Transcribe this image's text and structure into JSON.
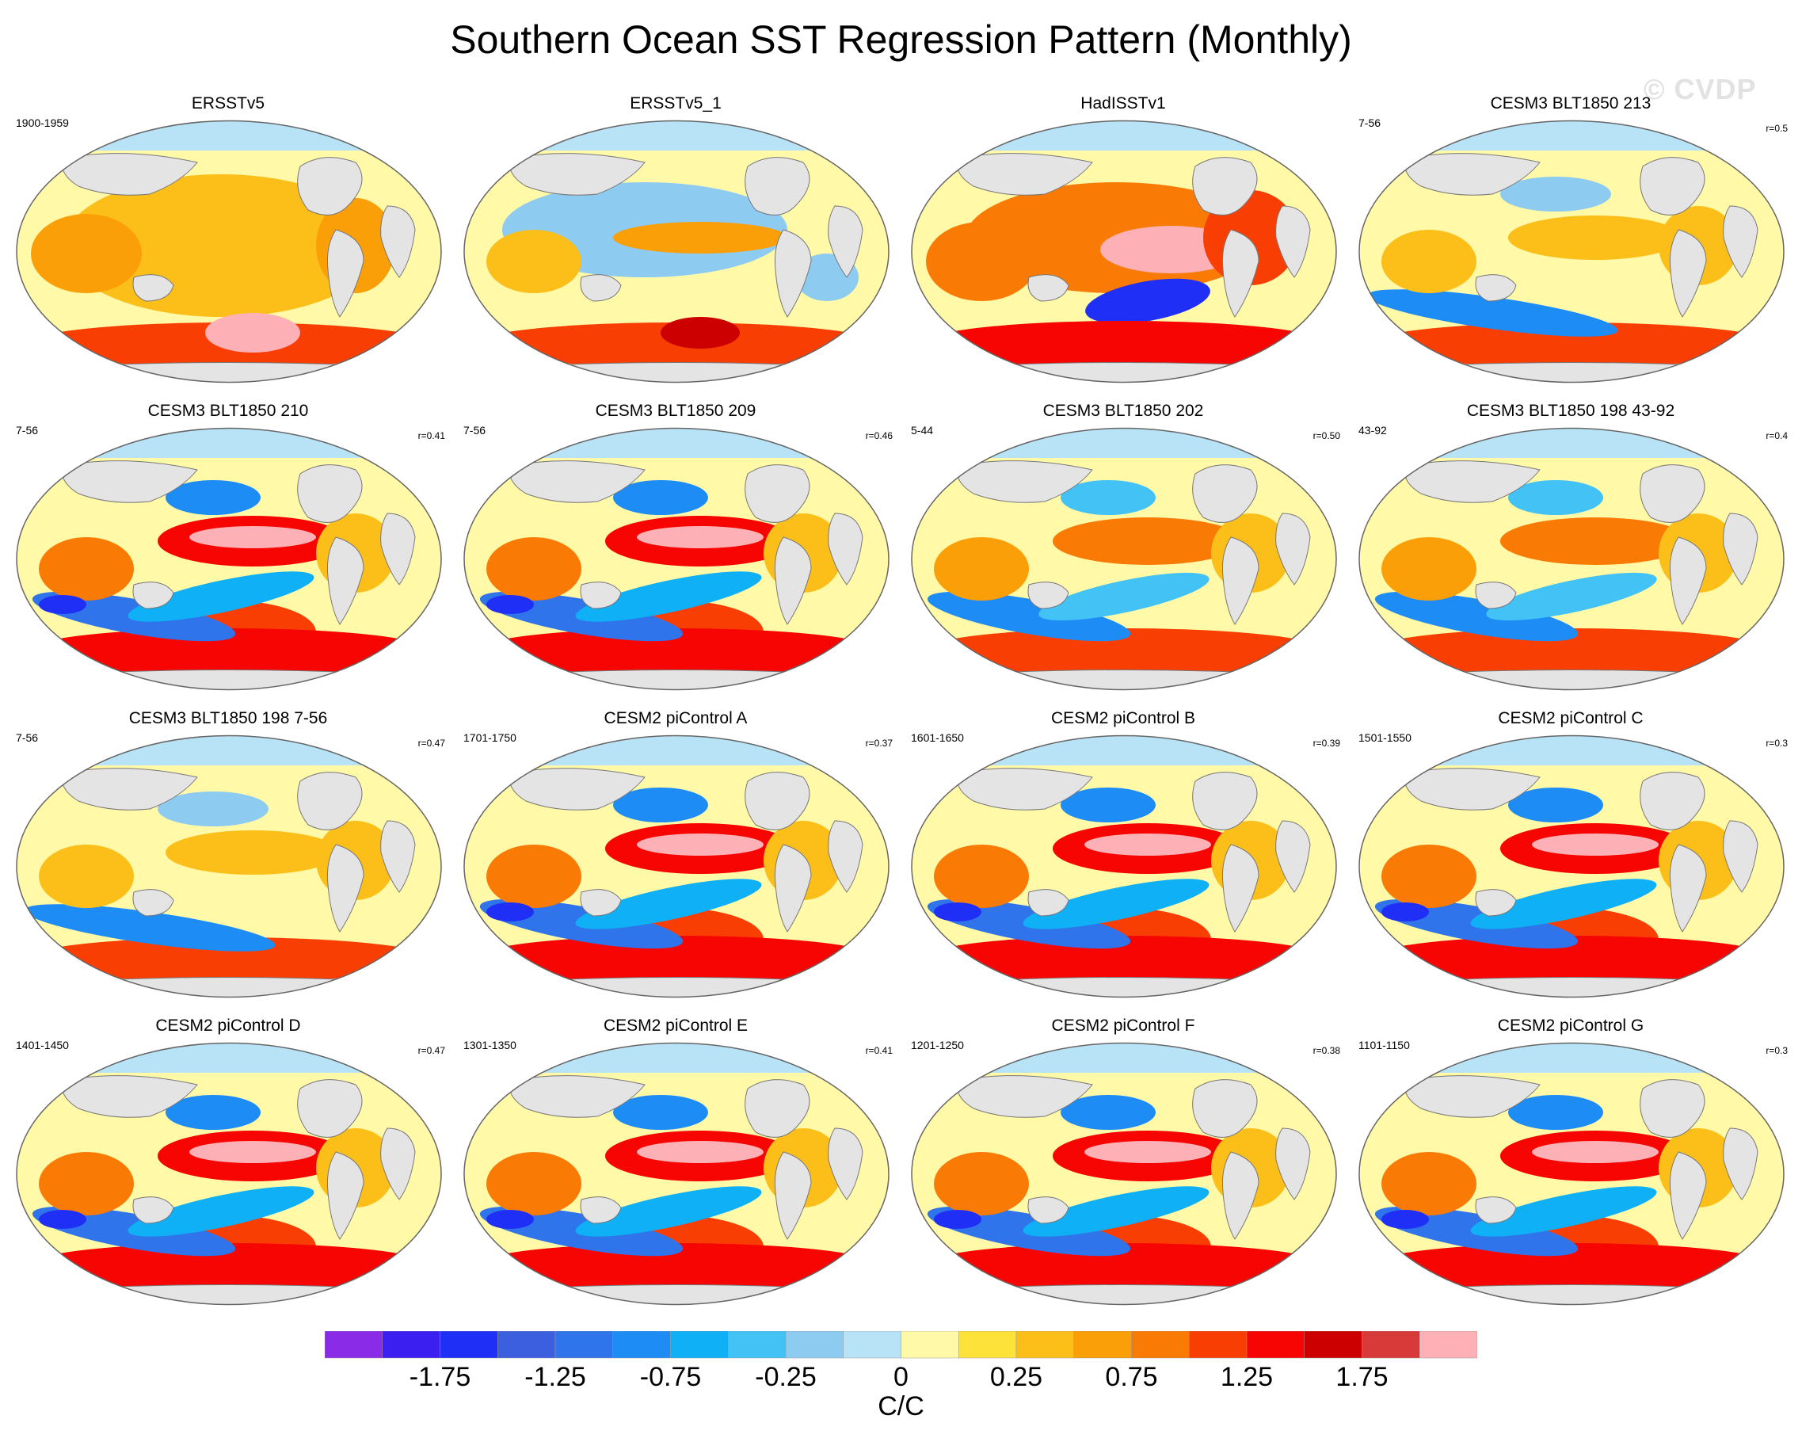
{
  "title": "Southern Ocean SST Regression Pattern (Monthly)",
  "watermark": "© CVDP",
  "colors": {
    "ocean_neutral": "#fff9a8",
    "land": "#e4e4e4",
    "coast": "#777777"
  },
  "panels": [
    {
      "title": "ERSSTv5",
      "years": "1900-1959",
      "corr": "",
      "pattern": "obs1"
    },
    {
      "title": "ERSSTv5_1",
      "years": "",
      "corr": "",
      "pattern": "obs2"
    },
    {
      "title": "HadISSTv1",
      "years": "",
      "corr": "",
      "pattern": "obs3"
    },
    {
      "title": "CESM3 BLT1850 213",
      "years": "7-56",
      "corr": "r=0.5",
      "pattern": "weak"
    },
    {
      "title": "CESM3 BLT1850 210",
      "years": "7-56",
      "corr": "r=0.41",
      "pattern": "strong"
    },
    {
      "title": "CESM3 BLT1850 209",
      "years": "7-56",
      "corr": "r=0.46",
      "pattern": "strong"
    },
    {
      "title": "CESM3 BLT1850 202",
      "years": "5-44",
      "corr": "r=0.50",
      "pattern": "medium"
    },
    {
      "title": "CESM3 BLT1850 198 43-92",
      "years": "43-92",
      "corr": "r=0.4",
      "pattern": "medium"
    },
    {
      "title": "CESM3 BLT1850 198 7-56",
      "years": "7-56",
      "corr": "r=0.47",
      "pattern": "weak"
    },
    {
      "title": "CESM2 piControl A",
      "years": "1701-1750",
      "corr": "r=0.37",
      "pattern": "strong"
    },
    {
      "title": "CESM2 piControl B",
      "years": "1601-1650",
      "corr": "r=0.39",
      "pattern": "strong"
    },
    {
      "title": "CESM2 piControl C",
      "years": "1501-1550",
      "corr": "r=0.3",
      "pattern": "strong"
    },
    {
      "title": "CESM2 piControl D",
      "years": "1401-1450",
      "corr": "r=0.47",
      "pattern": "strong"
    },
    {
      "title": "CESM2 piControl E",
      "years": "1301-1350",
      "corr": "r=0.41",
      "pattern": "strong"
    },
    {
      "title": "CESM2 piControl F",
      "years": "1201-1250",
      "corr": "r=0.38",
      "pattern": "strong"
    },
    {
      "title": "CESM2 piControl G",
      "years": "1101-1150",
      "corr": "r=0.3",
      "pattern": "strong"
    }
  ],
  "colorbar": {
    "units": "C/C",
    "colors": [
      "#8a2be8",
      "#3a1ff0",
      "#1f2ff5",
      "#3c5fe0",
      "#2f74ea",
      "#1e8cf5",
      "#0fb0f5",
      "#43c2f5",
      "#8ecbf0",
      "#b8e2f5",
      "#fff9a8",
      "#fde23a",
      "#fcbf1a",
      "#fb9f08",
      "#fa7a06",
      "#f93e04",
      "#f70502",
      "#cc0000",
      "#d83a3a",
      "#fdb1b6"
    ],
    "labels": [
      {
        "text": "-1.75",
        "index": 1
      },
      {
        "text": "-1.25",
        "index": 3
      },
      {
        "text": "-0.75",
        "index": 5
      },
      {
        "text": "-0.25",
        "index": 7
      },
      {
        "text": "0",
        "index": 9
      },
      {
        "text": "0.25",
        "index": 11
      },
      {
        "text": "0.75",
        "index": 13
      },
      {
        "text": "1.25",
        "index": 15
      },
      {
        "text": "1.75",
        "index": 17
      }
    ]
  }
}
